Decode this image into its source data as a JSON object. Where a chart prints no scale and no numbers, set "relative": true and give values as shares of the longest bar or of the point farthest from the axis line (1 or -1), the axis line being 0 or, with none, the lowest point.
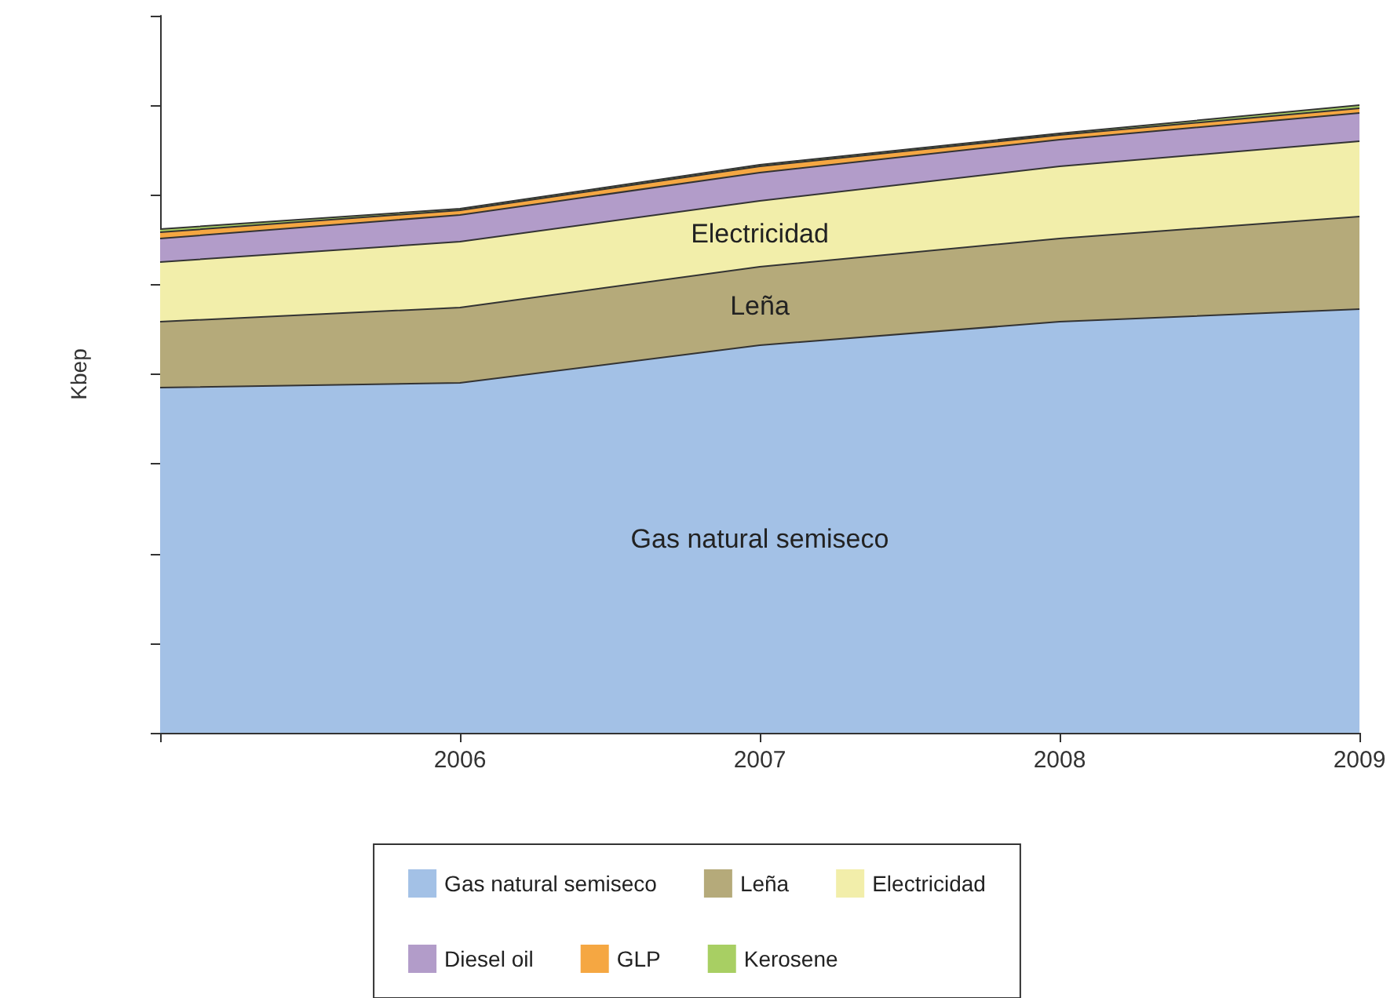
{
  "chart_data": {
    "type": "area",
    "stacked": true,
    "relative": true,
    "ylabel": "Kbep",
    "categories": [
      null,
      "2006",
      "2007",
      "2008",
      "2009"
    ],
    "series": [
      {
        "name": "Gas natural semiseco",
        "color": "#a3c1e6",
        "values": [
          0.55,
          0.5575,
          0.6175,
          0.655,
          0.675
        ]
      },
      {
        "name": "Leña",
        "color": "#b5aa7a",
        "values": [
          0.105,
          0.12,
          0.125,
          0.1325,
          0.1475
        ]
      },
      {
        "name": "Electricidad",
        "color": "#f2eeaa",
        "values": [
          0.095,
          0.105,
          0.105,
          0.115,
          0.12
        ]
      },
      {
        "name": "Diesel oil",
        "color": "#b29cc9",
        "values": [
          0.0375,
          0.0425,
          0.045,
          0.0425,
          0.045
        ]
      },
      {
        "name": "GLP",
        "color": "#f5a742",
        "values": [
          0.01,
          0.0075,
          0.01,
          0.0075,
          0.0075
        ]
      },
      {
        "name": "Kerosene",
        "color": "#a8cf63",
        "values": [
          0.005,
          0.0025,
          0.0025,
          0.0025,
          0.005
        ]
      }
    ],
    "legend": "bottom"
  }
}
